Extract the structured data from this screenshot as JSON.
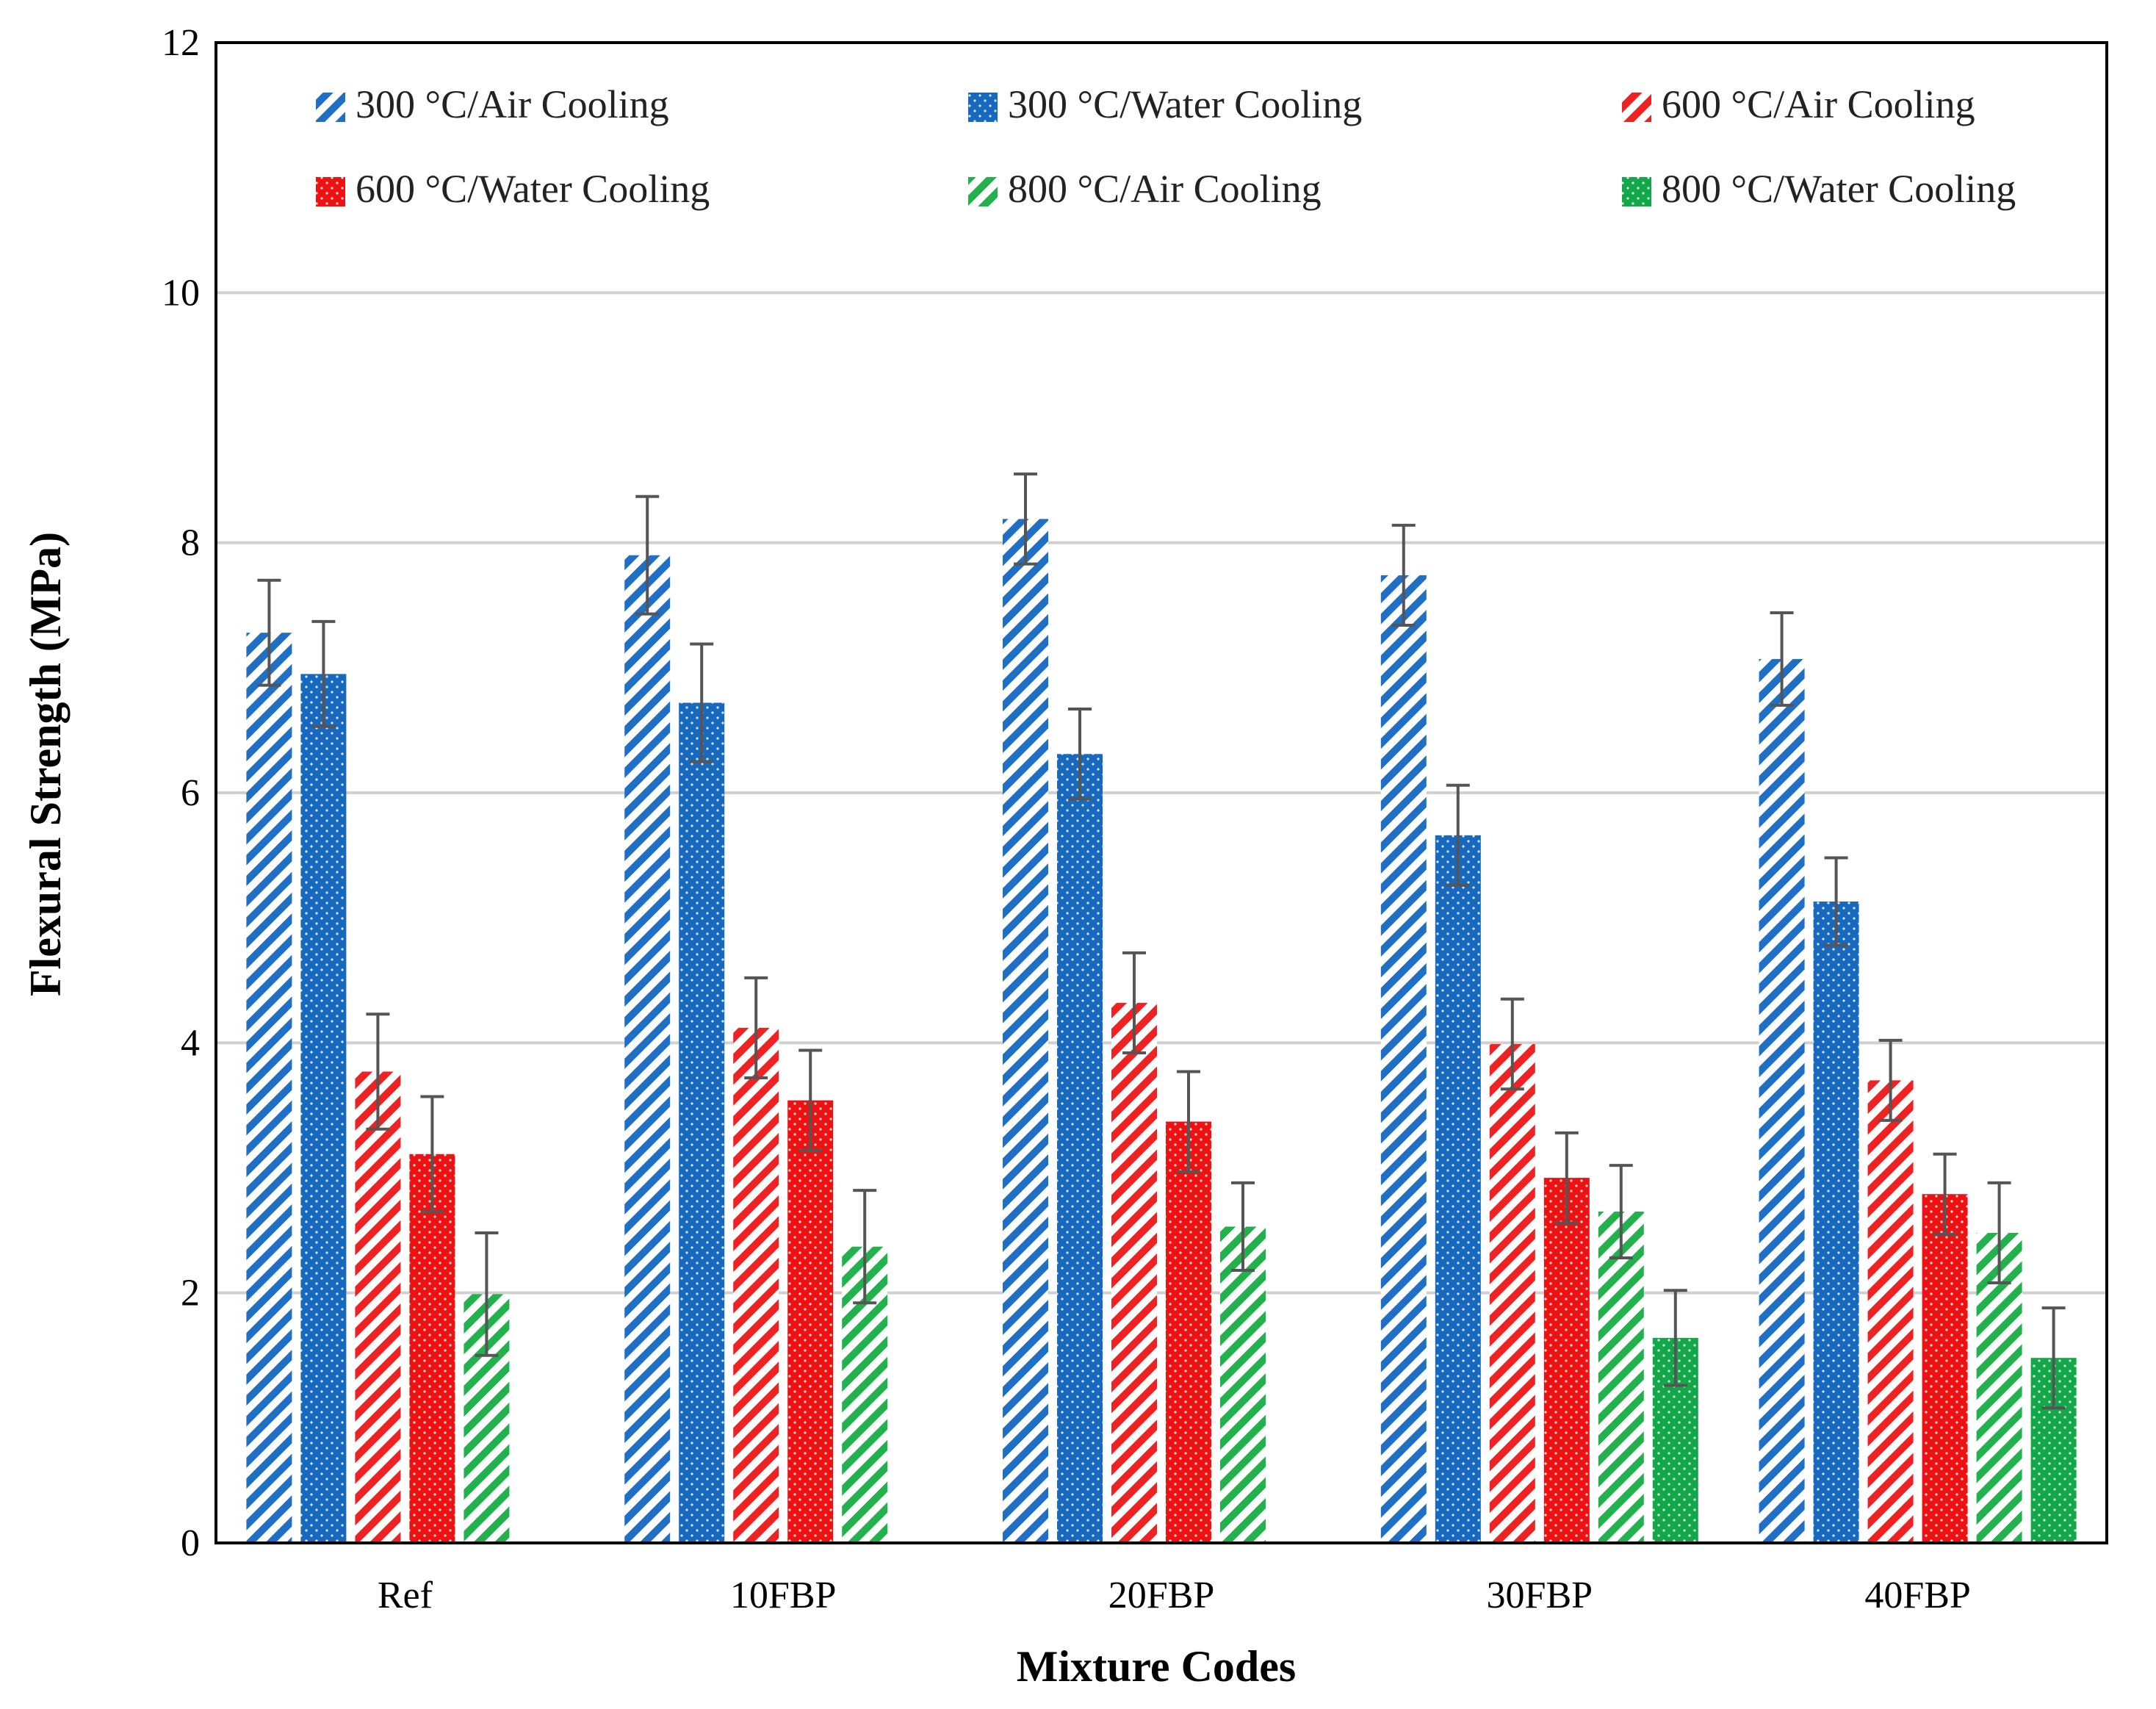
{
  "chart_data": {
    "type": "bar",
    "xlabel": "Mixture Codes",
    "ylabel": "Flexural Strength (MPa)",
    "ylim": [
      0,
      12
    ],
    "yticks": [
      0,
      2,
      4,
      6,
      8,
      10,
      12
    ],
    "grid": "horizontal",
    "legend_position": "top (inside plot, 3 columns)",
    "categories": [
      "Ref",
      "10FBP",
      "20FBP",
      "30FBP",
      "40FBP"
    ],
    "series": [
      {
        "name": "300 °C/Air Cooling",
        "color": "#1f6fc4",
        "pattern": "hatch",
        "values": [
          7.28,
          7.9,
          8.19,
          7.74,
          7.07
        ],
        "errors": [
          0.42,
          0.47,
          0.36,
          0.4,
          0.37
        ]
      },
      {
        "name": "300 °C/Water Cooling",
        "color": "#1768bf",
        "pattern": "dots",
        "values": [
          6.95,
          6.72,
          6.31,
          5.66,
          5.13
        ],
        "errors": [
          0.42,
          0.47,
          0.36,
          0.4,
          0.35
        ]
      },
      {
        "name": "600 °C/Air Cooling",
        "color": "#ee2222",
        "pattern": "hatch",
        "values": [
          3.77,
          4.12,
          4.32,
          3.99,
          3.7
        ],
        "errors": [
          0.46,
          0.4,
          0.4,
          0.36,
          0.32
        ]
      },
      {
        "name": "600 °C/Water Cooling",
        "color": "#ee1111",
        "pattern": "dots",
        "values": [
          3.11,
          3.54,
          3.37,
          2.92,
          2.79
        ],
        "errors": [
          0.46,
          0.4,
          0.4,
          0.36,
          0.32
        ]
      },
      {
        "name": "800 °C/Air Cooling",
        "color": "#22b14c",
        "pattern": "hatch",
        "values": [
          1.99,
          2.37,
          2.53,
          2.65,
          2.48
        ],
        "errors": [
          0.49,
          0.45,
          0.35,
          0.37,
          0.4
        ]
      },
      {
        "name": "800 °C/Water Cooling",
        "color": "#12a84a",
        "pattern": "dots",
        "values": [
          null,
          null,
          null,
          1.64,
          1.48
        ],
        "errors": [
          null,
          null,
          null,
          0.38,
          0.4
        ]
      }
    ]
  }
}
